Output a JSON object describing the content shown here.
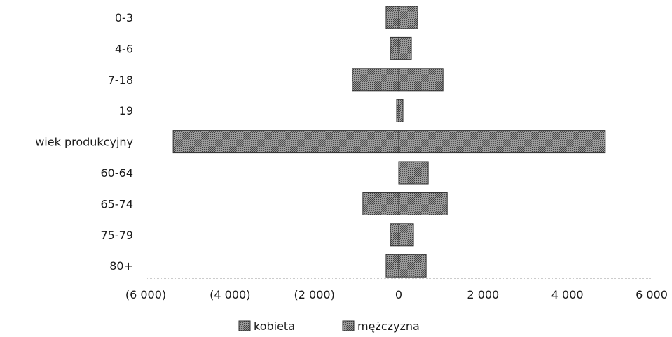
{
  "chart_data": {
    "type": "bar",
    "orientation": "horizontal",
    "stacked": true,
    "categories": [
      "0-3",
      "4-6",
      "7-18",
      "19",
      "wiek produkcyjny",
      "60-64",
      "65-74",
      "75-79",
      "80+"
    ],
    "series": [
      {
        "name": "kobieta",
        "values": [
          -300,
          -200,
          -1100,
          -50,
          -5350,
          0,
          -850,
          -200,
          -300
        ],
        "color": "#8c8c8c"
      },
      {
        "name": "mężczyzna",
        "values": [
          450,
          300,
          1050,
          100,
          4900,
          700,
          1150,
          350,
          650
        ],
        "color": "#7a7a7a"
      }
    ],
    "xlim": [
      -6000,
      6000
    ],
    "xticks": [
      -6000,
      -4000,
      -2000,
      0,
      2000,
      4000,
      6000
    ],
    "xtick_labels": [
      "(6 000)",
      "(4 000)",
      "(2 000)",
      "0",
      "2 000",
      "4 000",
      "6 000"
    ],
    "title": "",
    "xlabel": "",
    "ylabel": "",
    "grid": false,
    "legend_position": "bottom"
  }
}
